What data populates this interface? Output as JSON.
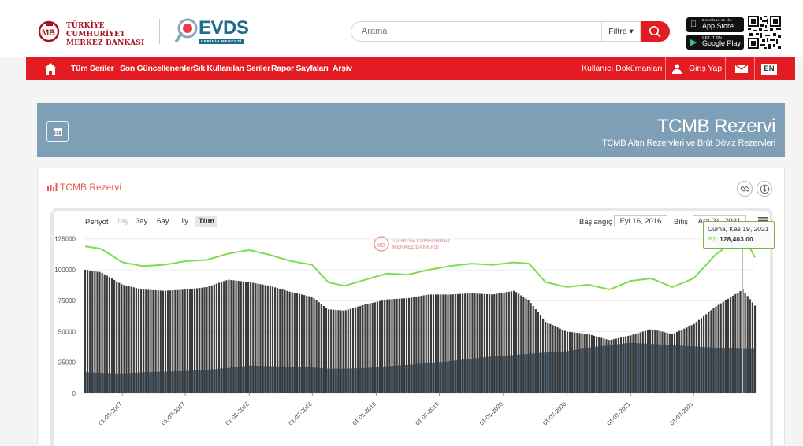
{
  "header": {
    "bank_name_line1": "TÜRKİYE CUMHURİYET",
    "bank_name_line2": "MERKEZ BANKASI",
    "evds_logo": "EVDS",
    "evds_tagline": "VERİNİN MERKEZİ",
    "search_placeholder": "Arama",
    "filter_label": "Filtre ▾",
    "app_store_small": "Download on the",
    "app_store_big": "App Store",
    "google_play_small": "GET IT ON",
    "google_play_big": "Google Play"
  },
  "navbar": {
    "items": [
      "Tüm Seriler",
      "Son Güncellenenler",
      "Sık Kullanılan Seriler",
      "Rapor Sayfaları",
      "Arşiv"
    ],
    "docs": "Kullanıcı Dokümanları",
    "login": "Giriş Yap",
    "lang": "EN"
  },
  "banner": {
    "title": "TCMB Rezervi",
    "subtitle": "TCMB Altın Rezervleri ve Brüt Döviz Rezervleri"
  },
  "card": {
    "title": "TCMB Rezervi",
    "period_label": "Periyot",
    "ranges": [
      "1ay",
      "3ay",
      "6ay",
      "1y",
      "Tüm"
    ],
    "range_disabled": "1ay",
    "range_active": "Tüm",
    "start_label": "Başlangıç",
    "start_date": "Eyl 16, 2016",
    "end_label": "Bitiş",
    "end_date": "Ara 24, 2021",
    "watermark_line1": "TÜRKİYE CUMHURİYET",
    "watermark_line2": "MERKEZ BANKASI"
  },
  "tooltip": {
    "date": "Cuma, Kas 19, 2021",
    "series": "P1",
    "value": "128,403.00"
  },
  "colors": {
    "brand_red": "#e31b23",
    "banner_blue": "#7f9fb7",
    "line_green": "#7cde4c",
    "bar_dark": "#3a3a3a",
    "area_navy": "#476680"
  },
  "chart_data": {
    "type": "bar",
    "yticks": [
      0,
      25000,
      50000,
      75000,
      100000,
      125000
    ],
    "ylim": [
      0,
      135000
    ],
    "xticks": [
      "01-01-2017",
      "01-07-2017",
      "01-01-2018",
      "01-07-2018",
      "01-01-2019",
      "01-07-2019",
      "01-01-2020",
      "01-07-2020",
      "01-01-2021",
      "01-07-2021"
    ],
    "x_start": "2016-09-16",
    "x_end": "2021-12-24",
    "series": [
      {
        "type": "line",
        "x": [
          "2016-09-16",
          "2016-11-01",
          "2017-01-01",
          "2017-03-01",
          "2017-05-01",
          "2017-07-01",
          "2017-09-01",
          "2017-11-01",
          "2018-01-01",
          "2018-03-01",
          "2018-05-01",
          "2018-07-01",
          "2018-08-15",
          "2018-10-01",
          "2018-12-01",
          "2019-02-01",
          "2019-04-01",
          "2019-06-01",
          "2019-08-01",
          "2019-10-01",
          "2019-12-01",
          "2020-02-01",
          "2020-03-15",
          "2020-05-01",
          "2020-07-01",
          "2020-09-01",
          "2020-11-01",
          "2021-01-01",
          "2021-03-01",
          "2021-05-01",
          "2021-07-01",
          "2021-09-01",
          "2021-11-19",
          "2021-12-24"
        ],
        "y": [
          119000,
          117000,
          106000,
          103000,
          104000,
          107000,
          108000,
          113000,
          116000,
          112000,
          107000,
          104000,
          90000,
          87000,
          92000,
          97000,
          96000,
          100000,
          103000,
          105000,
          104000,
          106000,
          105000,
          90000,
          86000,
          88000,
          84000,
          91000,
          93000,
          86000,
          93000,
          112000,
          128403,
          110000
        ]
      },
      {
        "type": "column",
        "x": [
          "2016-09-16",
          "2016-11-01",
          "2017-01-01",
          "2017-03-01",
          "2017-05-01",
          "2017-07-01",
          "2017-09-01",
          "2017-11-01",
          "2018-01-01",
          "2018-03-01",
          "2018-05-01",
          "2018-07-01",
          "2018-08-15",
          "2018-10-01",
          "2018-12-01",
          "2019-02-01",
          "2019-04-01",
          "2019-06-01",
          "2019-08-01",
          "2019-10-01",
          "2019-12-01",
          "2020-02-01",
          "2020-03-15",
          "2020-05-01",
          "2020-07-01",
          "2020-09-01",
          "2020-11-01",
          "2021-01-01",
          "2021-03-01",
          "2021-05-01",
          "2021-07-01",
          "2021-09-01",
          "2021-11-19",
          "2021-12-24"
        ],
        "y": [
          100000,
          98000,
          88000,
          84000,
          83000,
          84000,
          86000,
          92000,
          90000,
          87000,
          82000,
          78000,
          68000,
          67000,
          72000,
          76000,
          77000,
          80000,
          80000,
          81000,
          80000,
          83000,
          75000,
          58000,
          50000,
          48000,
          43000,
          47000,
          52000,
          48000,
          56000,
          70000,
          84000,
          71000
        ]
      },
      {
        "type": "area",
        "x": [
          "2016-09-16",
          "2016-11-01",
          "2017-01-01",
          "2017-03-01",
          "2017-05-01",
          "2017-07-01",
          "2017-09-01",
          "2017-11-01",
          "2018-01-01",
          "2018-03-01",
          "2018-05-01",
          "2018-07-01",
          "2018-08-15",
          "2018-10-01",
          "2018-12-01",
          "2019-02-01",
          "2019-04-01",
          "2019-06-01",
          "2019-08-01",
          "2019-10-01",
          "2019-12-01",
          "2020-02-01",
          "2020-03-15",
          "2020-05-01",
          "2020-07-01",
          "2020-09-01",
          "2020-11-01",
          "2021-01-01",
          "2021-03-01",
          "2021-05-01",
          "2021-07-01",
          "2021-09-01",
          "2021-11-19",
          "2021-12-24"
        ],
        "y": [
          17000,
          16500,
          16000,
          17000,
          17500,
          18000,
          19000,
          20500,
          22500,
          22000,
          21500,
          21000,
          20000,
          20000,
          20500,
          22000,
          23000,
          24500,
          26000,
          28000,
          30000,
          31000,
          32000,
          33000,
          34000,
          37000,
          39000,
          41000,
          40000,
          39000,
          38000,
          37000,
          36000,
          36000
        ]
      }
    ]
  }
}
